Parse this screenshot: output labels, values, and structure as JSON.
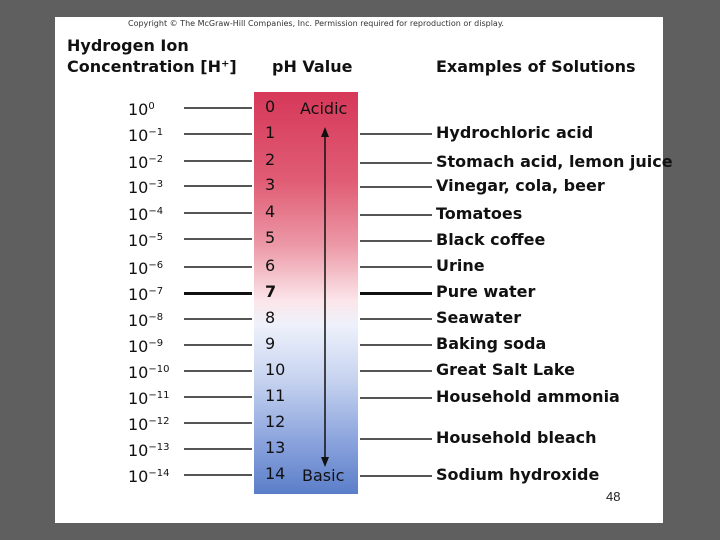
{
  "copyright": "Copyright © The McGraw-Hill Companies, Inc. Permission required for reproduction or display.",
  "headers": {
    "concentration_line1": "Hydrogen Ion",
    "concentration_line2": "Concentration [H⁺]",
    "ph": "pH Value",
    "examples": "Examples of Solutions"
  },
  "scale_labels": {
    "acidic": "Acidic",
    "basic": "Basic"
  },
  "colors": {
    "acidic": "#d6385a",
    "neutral": "#ffffff",
    "basic": "#5b7ec9",
    "slide_background": "#5f5f5f"
  },
  "rows": [
    {
      "base": "10",
      "exp": "0",
      "ph": "0",
      "example": ""
    },
    {
      "base": "10",
      "exp": "−1",
      "ph": "1",
      "example": "Hydrochloric acid"
    },
    {
      "base": "10",
      "exp": "−2",
      "ph": "2",
      "example": "Stomach acid, lemon juice"
    },
    {
      "base": "10",
      "exp": "−3",
      "ph": "3",
      "example": "Vinegar, cola, beer"
    },
    {
      "base": "10",
      "exp": "−4",
      "ph": "4",
      "example": "Tomatoes"
    },
    {
      "base": "10",
      "exp": "−5",
      "ph": "5",
      "example": "Black coffee"
    },
    {
      "base": "10",
      "exp": "−6",
      "ph": "6",
      "example": "Urine"
    },
    {
      "base": "10",
      "exp": "−7",
      "ph": "7",
      "example": "Pure water"
    },
    {
      "base": "10",
      "exp": "−8",
      "ph": "8",
      "example": "Seawater"
    },
    {
      "base": "10",
      "exp": "−9",
      "ph": "9",
      "example": "Baking soda"
    },
    {
      "base": "10",
      "exp": "−10",
      "ph": "10",
      "example": "Great Salt Lake"
    },
    {
      "base": "10",
      "exp": "−11",
      "ph": "11",
      "example": "Household ammonia"
    },
    {
      "base": "10",
      "exp": "−12",
      "ph": "12",
      "example": ""
    },
    {
      "base": "10",
      "exp": "−13",
      "ph": "13",
      "example": "Household bleach"
    },
    {
      "base": "10",
      "exp": "−14",
      "ph": "14",
      "example": "Sodium hydroxide"
    }
  ],
  "page_number": "48"
}
